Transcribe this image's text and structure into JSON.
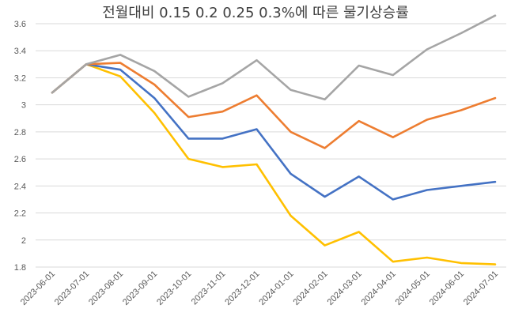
{
  "chart_data": {
    "type": "line",
    "title": "전월대비 0.15 0.2 0.25 0.3%에 따른 물기상승률",
    "xlabel": "",
    "ylabel": "",
    "ylim": [
      1.8,
      3.6
    ],
    "yticks": [
      "1.8",
      "2",
      "2.2",
      "2.4",
      "2.6",
      "2.8",
      "3",
      "3.2",
      "3.4",
      "3.6"
    ],
    "grid": true,
    "legend": "none",
    "categories": [
      "2023-06-01",
      "2023-07-01",
      "2023-08-01",
      "2023-09-01",
      "2023-10-01",
      "2023-11-01",
      "2023-12-01",
      "2024-01-01",
      "2024-02-01",
      "2024-03-01",
      "2024-04-01",
      "2024-05-01",
      "2024-06-01",
      "2024-07-01"
    ],
    "series": [
      {
        "name": "0.15",
        "color": "#ffc000",
        "values": [
          3.09,
          3.3,
          3.21,
          2.94,
          2.6,
          2.54,
          2.56,
          2.18,
          1.96,
          2.06,
          1.84,
          1.87,
          1.83,
          1.82
        ]
      },
      {
        "name": "0.2",
        "color": "#4472c4",
        "values": [
          3.09,
          3.3,
          3.26,
          3.05,
          2.75,
          2.75,
          2.82,
          2.49,
          2.32,
          2.47,
          2.3,
          2.37,
          2.4,
          2.43
        ]
      },
      {
        "name": "0.25",
        "color": "#ed7d31",
        "values": [
          3.09,
          3.3,
          3.31,
          3.15,
          2.91,
          2.95,
          3.07,
          2.8,
          2.68,
          2.88,
          2.76,
          2.89,
          2.96,
          3.05
        ]
      },
      {
        "name": "0.3",
        "color": "#a5a5a5",
        "values": [
          3.09,
          3.3,
          3.37,
          3.25,
          3.06,
          3.16,
          3.33,
          3.11,
          3.04,
          3.29,
          3.22,
          3.41,
          3.53,
          3.66
        ]
      }
    ]
  }
}
